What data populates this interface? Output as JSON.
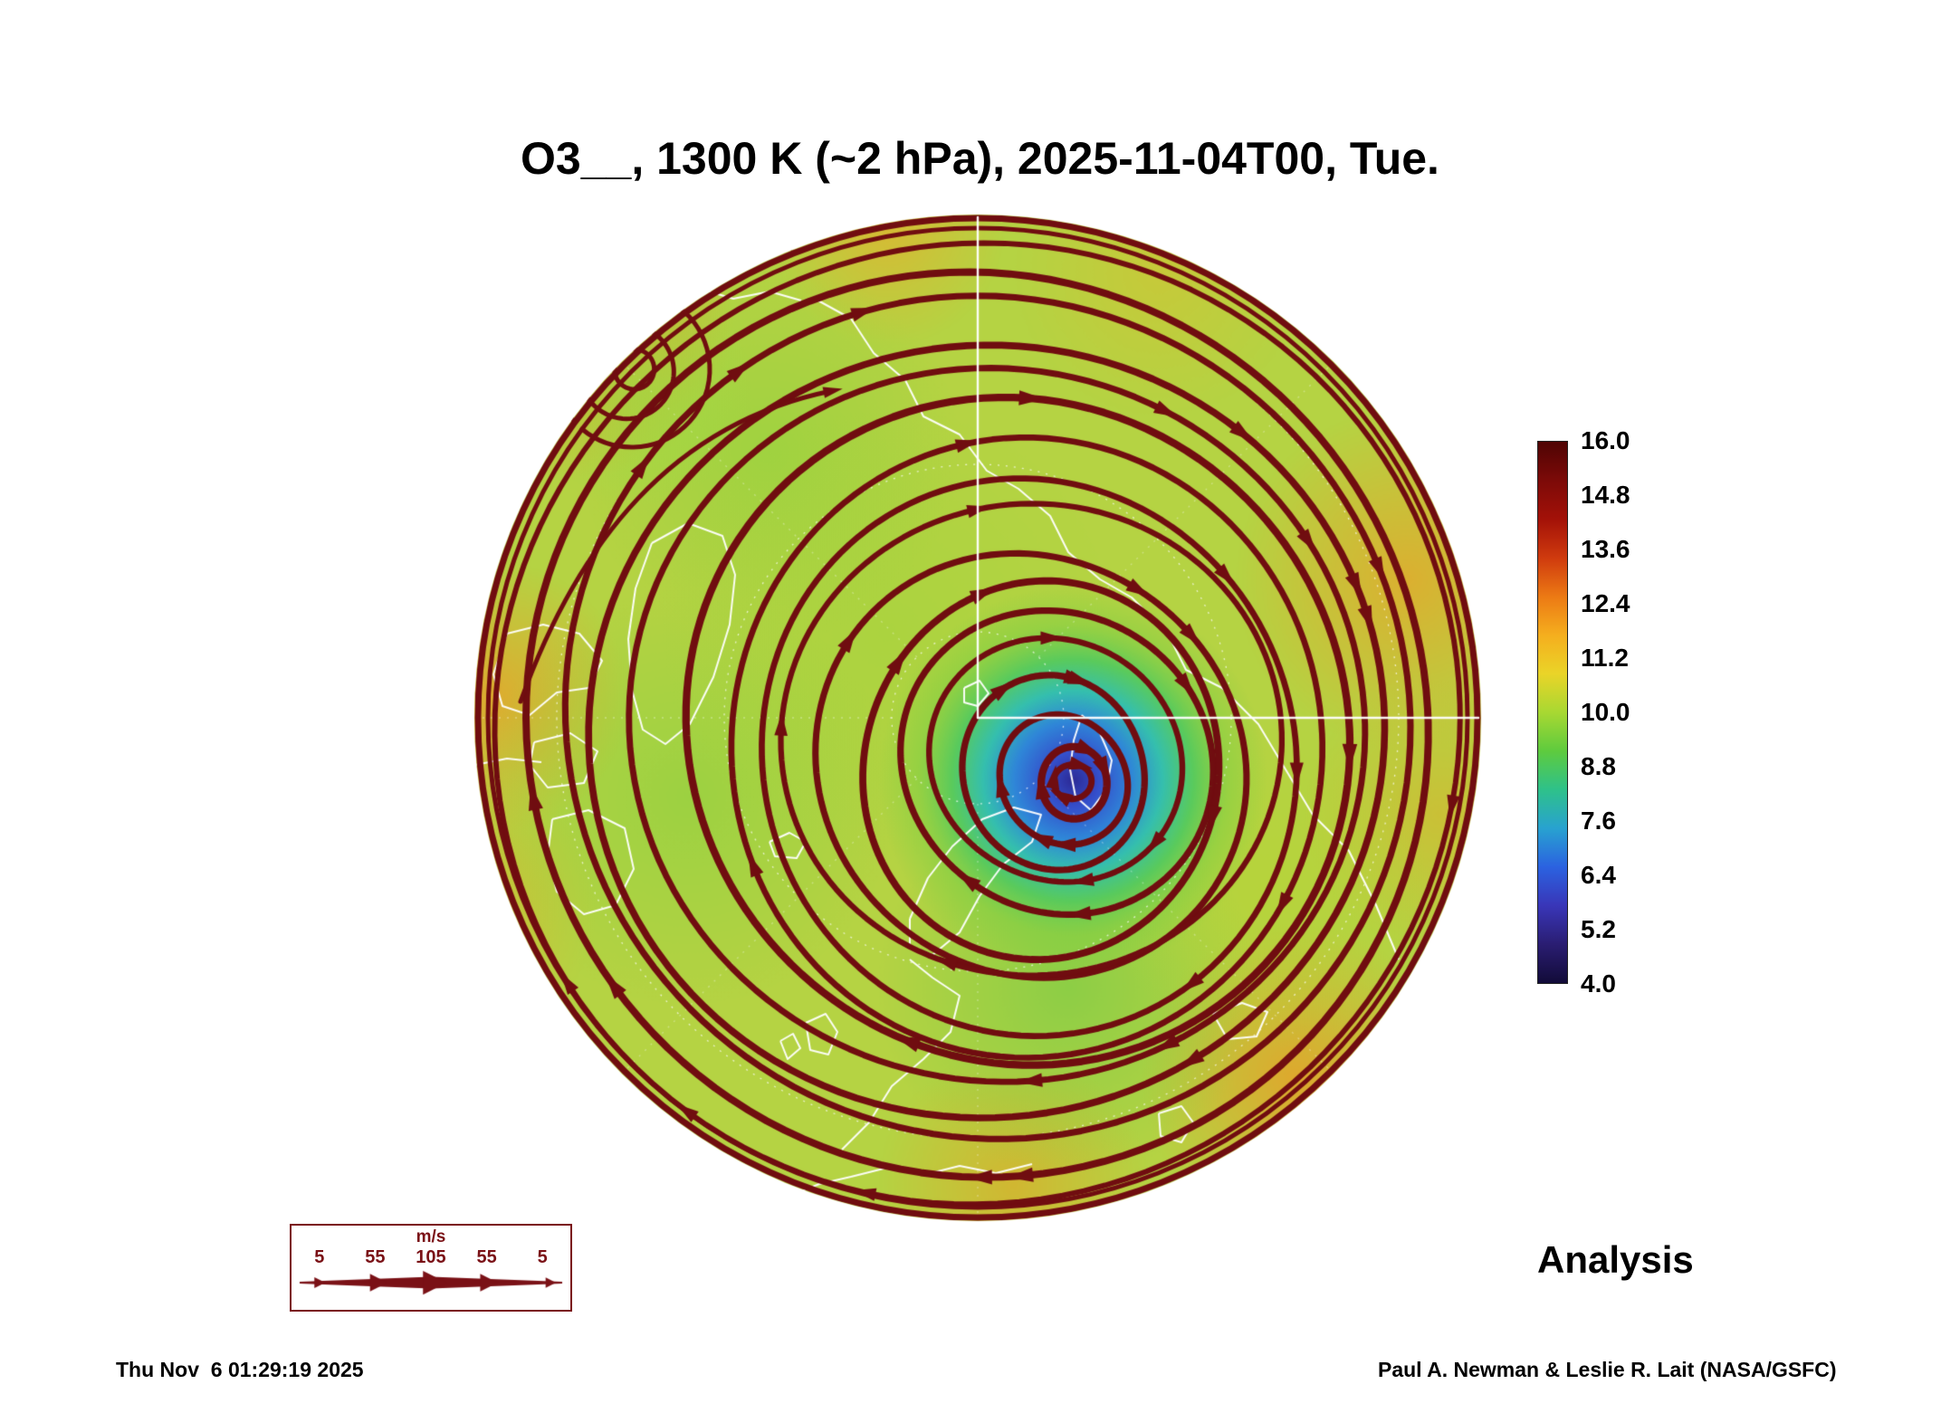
{
  "header": {
    "title": "O3__, 1300 K (~2 hPa), 2025-11-04T00, Tue."
  },
  "colorbar": {
    "ticks": [
      "16.0",
      "14.8",
      "13.6",
      "12.4",
      "11.2",
      "10.0",
      "8.8",
      "7.6",
      "6.4",
      "5.2",
      "4.0"
    ],
    "min": 4.0,
    "max": 16.0,
    "gradient": [
      "#4f0404",
      "#7c0a08",
      "#a31108",
      "#cf3a0e",
      "#ec7914",
      "#f5ae1e",
      "#ead428",
      "#a8d832",
      "#5ecb3e",
      "#2ec18a",
      "#28a2d0",
      "#2b62e0",
      "#3936b8",
      "#2a1d72",
      "#120b38"
    ]
  },
  "wind_legend": {
    "units_label": "m/s",
    "speeds": [
      "5",
      "55",
      "105",
      "55",
      "5"
    ]
  },
  "footer": {
    "analysis_label": "Analysis",
    "timestamp": "Thu Nov  6 01:29:19 2025",
    "credit": "Paul A. Newman & Leslie R. Lait (NASA/GSFC)"
  },
  "map_colors": {
    "base": "#b5d343",
    "streamline": "#700d10",
    "coastline": "#ffffff",
    "legend_accent": "#7a1116",
    "vortex_core": "#2c2a96"
  },
  "chart_data": {
    "type": "heatmap",
    "title": "O3__, 1300 K (~2 hPa), 2025-11-04T00, Tue.",
    "field": "O3",
    "level": "1300 K (~2 hPa)",
    "valid_time": "2025-11-04T00",
    "weekday": "Tue.",
    "projection": "northern-hemisphere polar map",
    "colorbar": {
      "ticks": [
        16.0,
        14.8,
        13.6,
        12.4,
        11.2,
        10.0,
        8.8,
        7.6,
        6.4,
        5.2,
        4.0
      ],
      "min": 4.0,
      "max": 16.0,
      "orientation": "vertical",
      "position": "right"
    },
    "overlays": [
      "wind streamlines with arrowheads",
      "coastlines",
      "latitude-longitude graticule"
    ],
    "wind_legend": {
      "units": "m/s",
      "speeds": [
        5,
        55,
        105,
        55,
        5
      ]
    },
    "annotations": [
      "Analysis"
    ],
    "generated": "Thu Nov  6 01:29:19 2025",
    "credit": "Paul A. Newman & Leslie R. Lait (NASA/GSFC)"
  }
}
